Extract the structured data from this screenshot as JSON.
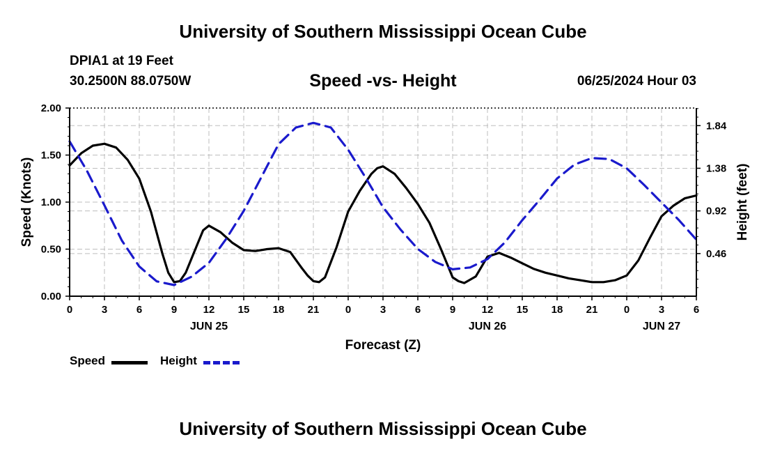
{
  "header": {
    "title": "University of Southern Mississippi Ocean Cube",
    "station": "DPIA1 at 19 Feet",
    "coords": "30.2500N  88.0750W",
    "datetime": "06/25/2024 Hour 03",
    "footer_title": "University of Southern Mississippi Ocean Cube"
  },
  "colors": {
    "speed": "#000000",
    "height": "#1a1acc",
    "grid": "#bdbdbd"
  },
  "chart_data": {
    "type": "line",
    "title": "Speed -vs- Height",
    "xlabel": "Forecast (Z)",
    "ylabel": "Speed (Knots)",
    "y2label": "Height (feet)",
    "xlim": [
      0,
      54
    ],
    "ylim": [
      0,
      2
    ],
    "y2lim": [
      0,
      2.03
    ],
    "x_ticks": [
      0,
      3,
      6,
      9,
      12,
      15,
      18,
      21,
      24,
      27,
      30,
      33,
      36,
      39,
      42,
      45,
      48,
      51,
      54
    ],
    "x_tick_labels": [
      "0",
      "3",
      "6",
      "9",
      "12",
      "15",
      "18",
      "21",
      "0",
      "3",
      "6",
      "9",
      "12",
      "15",
      "18",
      "21",
      "0",
      "3",
      "6"
    ],
    "y_ticks": [
      0,
      0.5,
      1,
      1.5,
      2
    ],
    "y_tick_labels": [
      "0.00",
      "0.50",
      "1.00",
      "1.50",
      "2.00"
    ],
    "y2_ticks": [
      0.46,
      0.92,
      1.38,
      1.84
    ],
    "y2_tick_labels": [
      "0.46",
      "0.92",
      "1.38",
      "1.84"
    ],
    "day_labels": [
      {
        "x": 12,
        "label": "JUN 25"
      },
      {
        "x": 36,
        "label": "JUN 26"
      },
      {
        "x": 51,
        "label": "JUN 27"
      }
    ],
    "grid": true,
    "legend_position": "bottom-left",
    "series": [
      {
        "name": "Speed",
        "axis": "left",
        "style": "solid",
        "x": [
          0,
          1,
          2,
          3,
          4,
          5,
          6,
          7,
          8,
          8.5,
          9,
          9.5,
          10,
          11,
          11.5,
          12,
          13,
          14,
          15,
          16,
          17,
          18,
          19,
          20,
          20.5,
          21,
          21.5,
          22,
          23,
          24,
          25,
          26,
          26.5,
          27,
          28,
          29,
          30,
          31,
          32,
          32.5,
          33,
          33.5,
          34,
          35,
          36,
          37,
          38,
          39,
          40,
          41,
          42,
          43,
          44,
          45,
          46,
          47,
          48,
          49,
          50,
          51,
          52,
          53,
          54
        ],
        "values": [
          1.39,
          1.52,
          1.6,
          1.62,
          1.58,
          1.45,
          1.25,
          0.9,
          0.45,
          0.25,
          0.15,
          0.16,
          0.25,
          0.55,
          0.7,
          0.75,
          0.68,
          0.57,
          0.49,
          0.48,
          0.5,
          0.51,
          0.47,
          0.3,
          0.22,
          0.16,
          0.15,
          0.2,
          0.52,
          0.9,
          1.12,
          1.3,
          1.36,
          1.38,
          1.3,
          1.15,
          0.98,
          0.78,
          0.5,
          0.35,
          0.2,
          0.16,
          0.14,
          0.21,
          0.42,
          0.46,
          0.41,
          0.35,
          0.29,
          0.25,
          0.22,
          0.19,
          0.17,
          0.15,
          0.15,
          0.17,
          0.22,
          0.38,
          0.62,
          0.85,
          0.96,
          1.04,
          1.07
        ]
      },
      {
        "name": "Height",
        "axis": "right",
        "style": "dashed",
        "x": [
          0,
          1.5,
          3,
          4.5,
          6,
          7.5,
          9,
          10.5,
          12,
          13.5,
          15,
          16.5,
          18,
          19.5,
          21,
          22.5,
          24,
          25.5,
          27,
          28.5,
          30,
          31.5,
          33,
          34.5,
          36,
          37.5,
          39,
          40.5,
          42,
          43.5,
          45,
          46.5,
          48,
          49.5,
          51,
          52.5,
          54
        ],
        "values": [
          1.67,
          1.35,
          0.98,
          0.6,
          0.32,
          0.16,
          0.12,
          0.21,
          0.36,
          0.62,
          0.92,
          1.28,
          1.64,
          1.82,
          1.87,
          1.82,
          1.58,
          1.28,
          0.96,
          0.72,
          0.51,
          0.37,
          0.29,
          0.31,
          0.4,
          0.58,
          0.82,
          1.04,
          1.27,
          1.42,
          1.49,
          1.48,
          1.38,
          1.2,
          1.01,
          0.82,
          0.61
        ]
      }
    ]
  },
  "legend": {
    "speed_label": "Speed",
    "height_label": "Height"
  }
}
